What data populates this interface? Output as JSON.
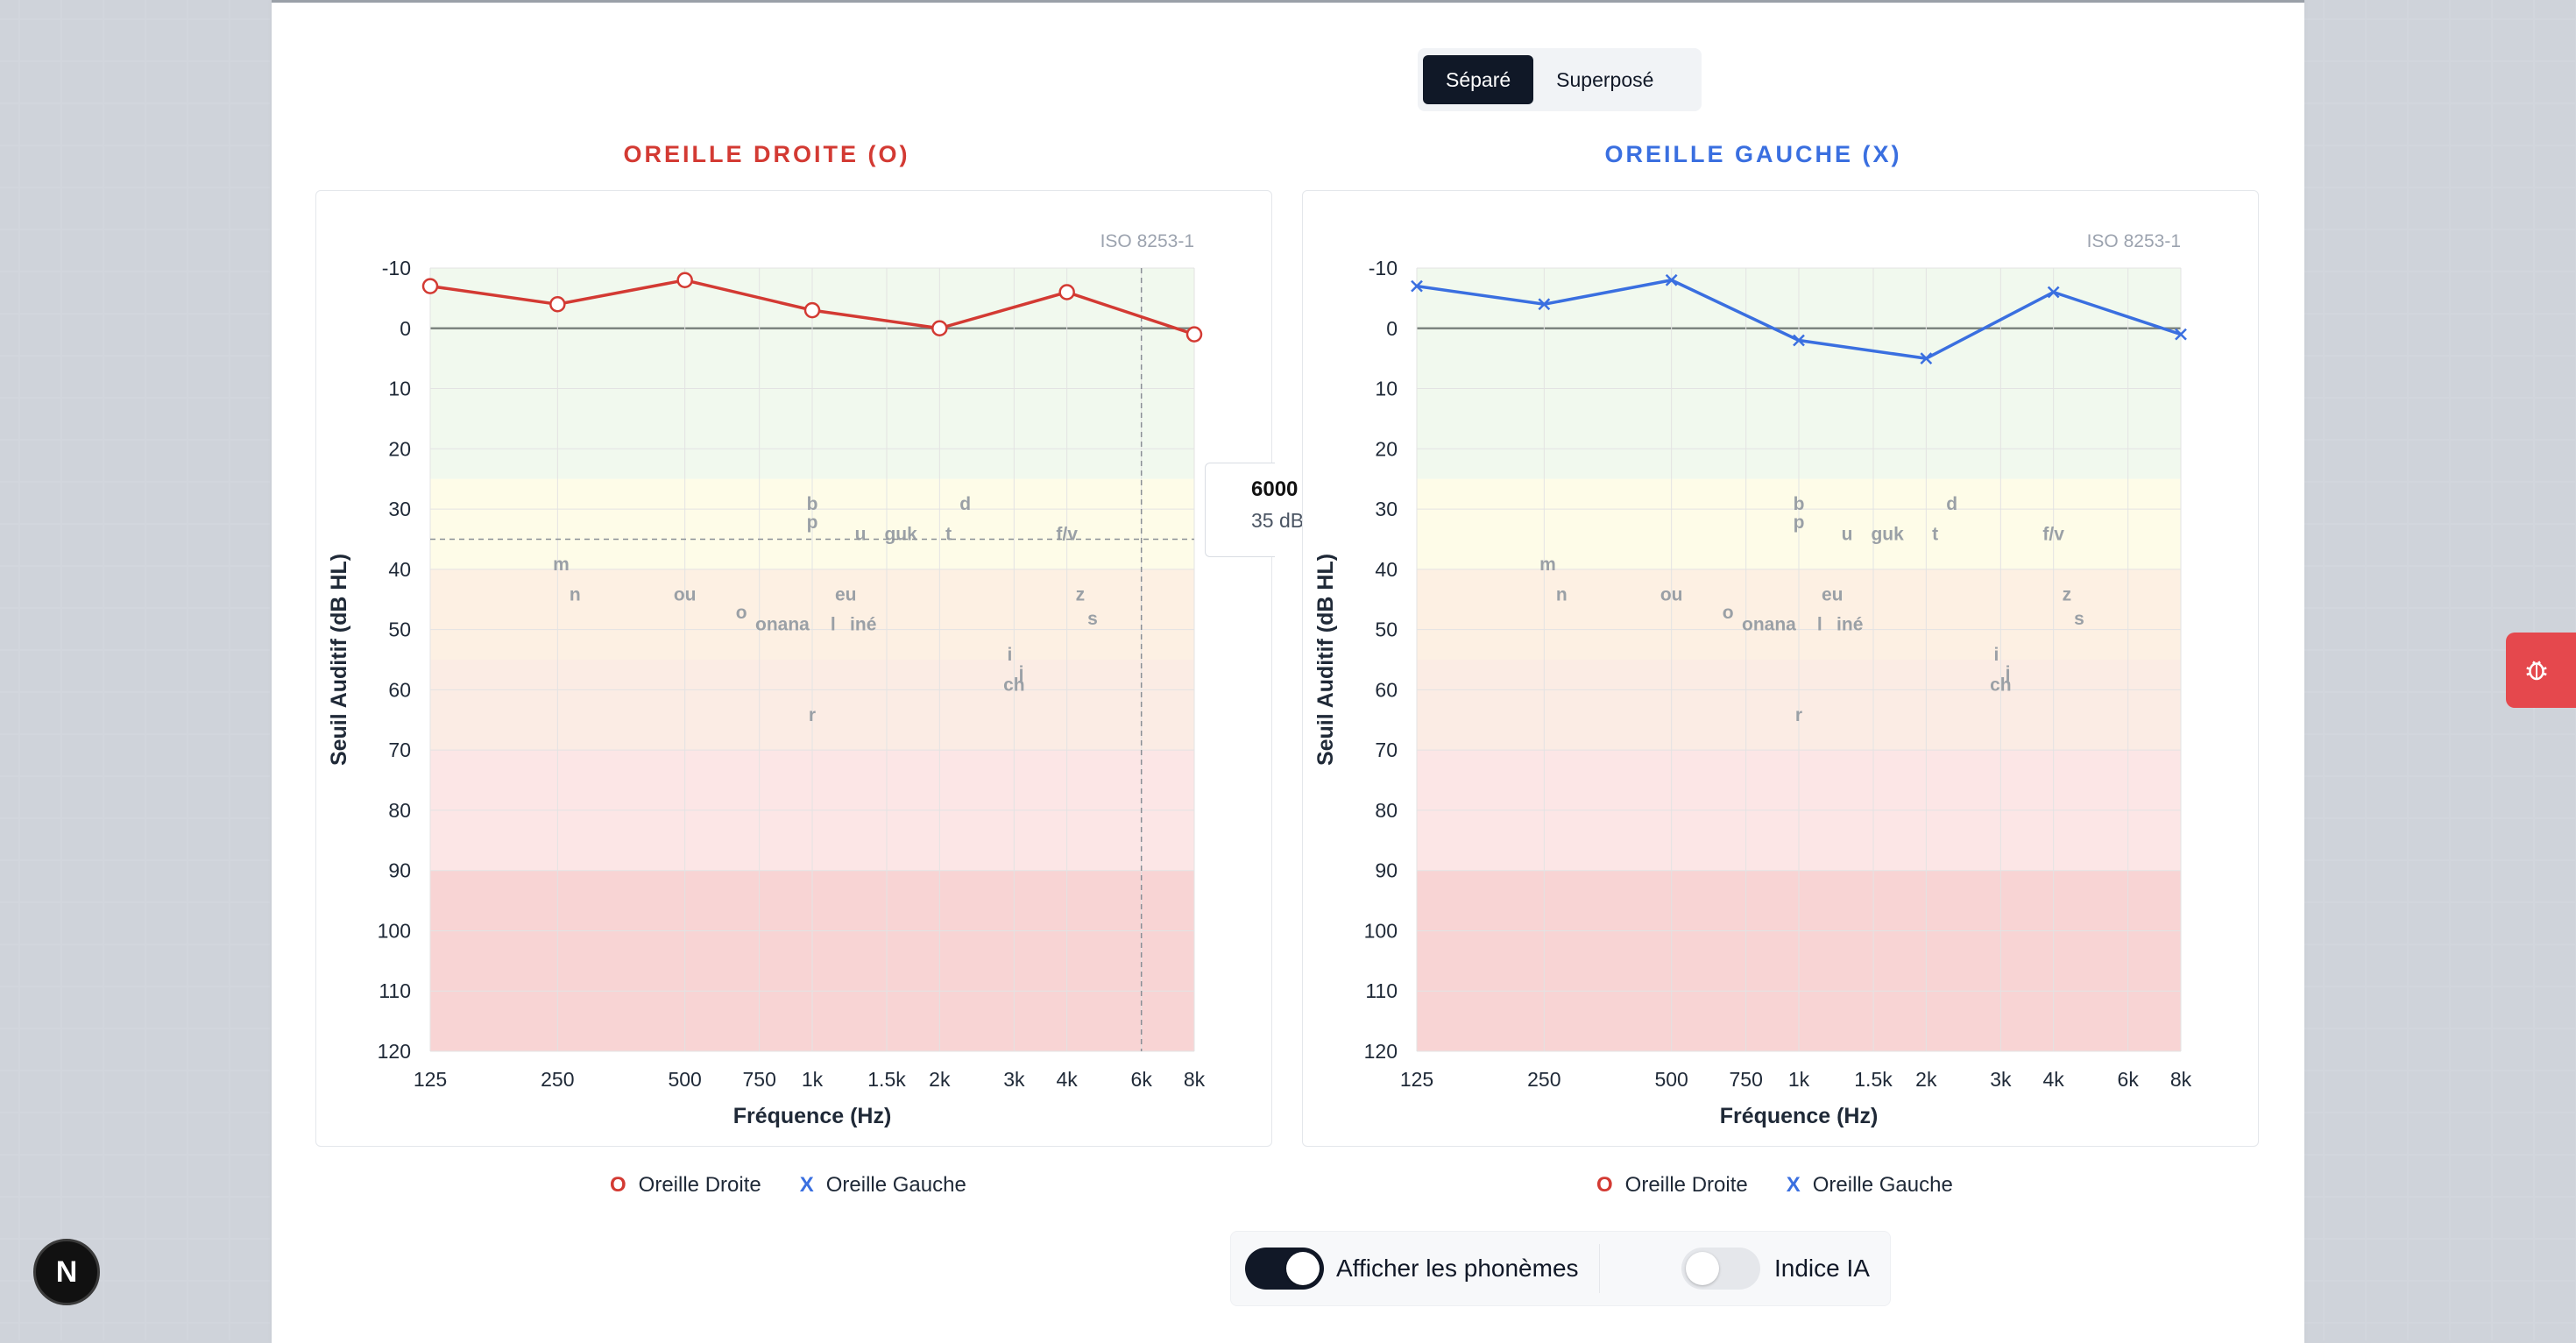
{
  "view_toggle": {
    "options": [
      {
        "label": "Séparé",
        "active": true
      },
      {
        "label": "Superposé",
        "active": false
      }
    ]
  },
  "colors": {
    "right_ear": "#d33a33",
    "left_ear": "#3a6fe0",
    "zone_normal": "#f1f9ee",
    "zone_light": "#fefce8",
    "zone_moderate": "#fdf0e3",
    "zone_severe": "#fce6e6",
    "zone_profound": "#f8d4d4"
  },
  "charts": {
    "right": {
      "title": "OREILLE DROITE (O)",
      "standard": "ISO 8253-1",
      "tooltip": {
        "freq": "6000",
        "value": "35 dB"
      }
    },
    "left": {
      "title": "OREILLE GAUCHE (X)",
      "standard": "ISO 8253-1"
    }
  },
  "chart_data": [
    {
      "type": "line",
      "title": "OREILLE DROITE (O)",
      "xlabel": "Fréquence (Hz)",
      "ylabel": "Seuil Auditif (dB HL)",
      "x_scale": "log",
      "x_ticks": [
        125,
        250,
        500,
        750,
        1000,
        1500,
        2000,
        3000,
        4000,
        6000,
        8000
      ],
      "x_tick_labels": [
        "125",
        "250",
        "500",
        "750",
        "1k",
        "1.5k",
        "2k",
        "3k",
        "4k",
        "6k",
        "8k"
      ],
      "y_ticks": [
        -10,
        0,
        10,
        20,
        30,
        40,
        50,
        60,
        70,
        80,
        90,
        100,
        110,
        120
      ],
      "ylim": [
        -10,
        120
      ],
      "y_inverted": true,
      "series": [
        {
          "name": "Oreille Droite",
          "marker": "O",
          "x": [
            125,
            250,
            500,
            1000,
            2000,
            4000,
            8000
          ],
          "values": [
            -7,
            -4,
            -8,
            -3,
            0,
            -6,
            1
          ]
        }
      ],
      "hover_line": {
        "x": 6000,
        "y": 35
      },
      "annotations": "phonemes"
    },
    {
      "type": "line",
      "title": "OREILLE GAUCHE (X)",
      "xlabel": "Fréquence (Hz)",
      "ylabel": "Seuil Auditif (dB HL)",
      "x_scale": "log",
      "x_ticks": [
        125,
        250,
        500,
        750,
        1000,
        1500,
        2000,
        3000,
        4000,
        6000,
        8000
      ],
      "x_tick_labels": [
        "125",
        "250",
        "500",
        "750",
        "1k",
        "1.5k",
        "2k",
        "3k",
        "4k",
        "6k",
        "8k"
      ],
      "y_ticks": [
        -10,
        0,
        10,
        20,
        30,
        40,
        50,
        60,
        70,
        80,
        90,
        100,
        110,
        120
      ],
      "ylim": [
        -10,
        120
      ],
      "y_inverted": true,
      "series": [
        {
          "name": "Oreille Gauche",
          "marker": "X",
          "x": [
            125,
            250,
            500,
            1000,
            2000,
            4000,
            8000
          ],
          "values": [
            -7,
            -4,
            -8,
            2,
            5,
            -6,
            1
          ]
        }
      ],
      "annotations": "phonemes"
    }
  ],
  "phonemes": [
    {
      "t": "b",
      "f": 1000,
      "db": 29
    },
    {
      "t": "p",
      "f": 1000,
      "db": 32
    },
    {
      "t": "d",
      "f": 2300,
      "db": 29
    },
    {
      "t": "u",
      "f": 1300,
      "db": 34
    },
    {
      "t": "guk",
      "f": 1620,
      "db": 34
    },
    {
      "t": "t",
      "f": 2100,
      "db": 34
    },
    {
      "t": "f/v",
      "f": 4000,
      "db": 34
    },
    {
      "t": "m",
      "f": 255,
      "db": 39
    },
    {
      "t": "n",
      "f": 275,
      "db": 44
    },
    {
      "t": "ou",
      "f": 500,
      "db": 44
    },
    {
      "t": "eu",
      "f": 1200,
      "db": 44
    },
    {
      "t": "z",
      "f": 4300,
      "db": 44
    },
    {
      "t": "s",
      "f": 4600,
      "db": 48
    },
    {
      "t": "o",
      "f": 680,
      "db": 47
    },
    {
      "t": "onana",
      "f": 850,
      "db": 49
    },
    {
      "t": "l",
      "f": 1120,
      "db": 49
    },
    {
      "t": "iné",
      "f": 1320,
      "db": 49
    },
    {
      "t": "i",
      "f": 2930,
      "db": 54
    },
    {
      "t": "j",
      "f": 3120,
      "db": 57
    },
    {
      "t": "ch",
      "f": 3000,
      "db": 59
    },
    {
      "t": "r",
      "f": 1000,
      "db": 64
    }
  ],
  "legend": {
    "right_symbol": "O",
    "right_label": "Oreille Droite",
    "left_symbol": "X",
    "left_label": "Oreille Gauche"
  },
  "controls": {
    "phonemes_label": "Afficher les phonèmes",
    "phonemes_on": true,
    "ai_label": "Indice IA",
    "ai_on": false
  },
  "badge": {
    "letter": "N"
  }
}
